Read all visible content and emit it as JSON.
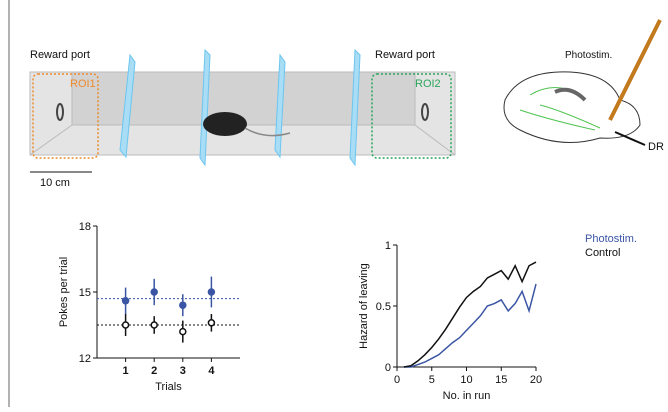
{
  "diagram": {
    "left_label": "Reward port",
    "right_label": "Reward port",
    "roi1": "ROI1",
    "roi2": "ROI2",
    "scale": "10 cm",
    "stim_label": "Photostim.",
    "region": "DR"
  },
  "chart_data": [
    {
      "type": "errorbar",
      "xlabel": "Trials",
      "ylabel": "Pokes per trial",
      "x": [
        1,
        2,
        3,
        4
      ],
      "xlim": [
        0,
        5
      ],
      "xticks": [
        1,
        2,
        3,
        4
      ],
      "ylim": [
        12,
        18
      ],
      "yticks": [
        12,
        15,
        18
      ],
      "series": [
        {
          "name": "Photostim.",
          "color": "#3a55a4",
          "values": [
            14.6,
            15.0,
            14.4,
            15.0
          ],
          "errors": [
            0.6,
            0.6,
            0.5,
            0.7
          ]
        },
        {
          "name": "Control",
          "color": "#111111",
          "values": [
            13.5,
            13.5,
            13.2,
            13.6
          ],
          "errors": [
            0.5,
            0.4,
            0.5,
            0.4
          ]
        }
      ],
      "hlines": [
        {
          "value": 14.7,
          "color": "#3a55a4"
        },
        {
          "value": 13.5,
          "color": "#111111"
        }
      ]
    },
    {
      "type": "line",
      "xlabel": "No. in run",
      "ylabel": "Hazard of leaving",
      "x": [
        1,
        2,
        3,
        4,
        5,
        6,
        7,
        8,
        9,
        10,
        11,
        12,
        13,
        14,
        15,
        16,
        17,
        18,
        19,
        20
      ],
      "xlim": [
        0,
        20
      ],
      "xticks": [
        0,
        5,
        10,
        15,
        20
      ],
      "ylim": [
        0,
        1
      ],
      "yticks": [
        0,
        0.5,
        1
      ],
      "series": [
        {
          "name": "Photostim.",
          "color": "#3a55a4",
          "values": [
            0,
            0,
            0.02,
            0.04,
            0.07,
            0.1,
            0.15,
            0.2,
            0.24,
            0.3,
            0.36,
            0.42,
            0.5,
            0.52,
            0.55,
            0.46,
            0.52,
            0.62,
            0.46,
            0.68
          ]
        },
        {
          "name": "Control",
          "color": "#111111",
          "values": [
            0,
            0.01,
            0.05,
            0.1,
            0.16,
            0.23,
            0.31,
            0.4,
            0.49,
            0.57,
            0.62,
            0.66,
            0.73,
            0.76,
            0.79,
            0.72,
            0.83,
            0.7,
            0.83,
            0.86
          ]
        }
      ]
    }
  ]
}
